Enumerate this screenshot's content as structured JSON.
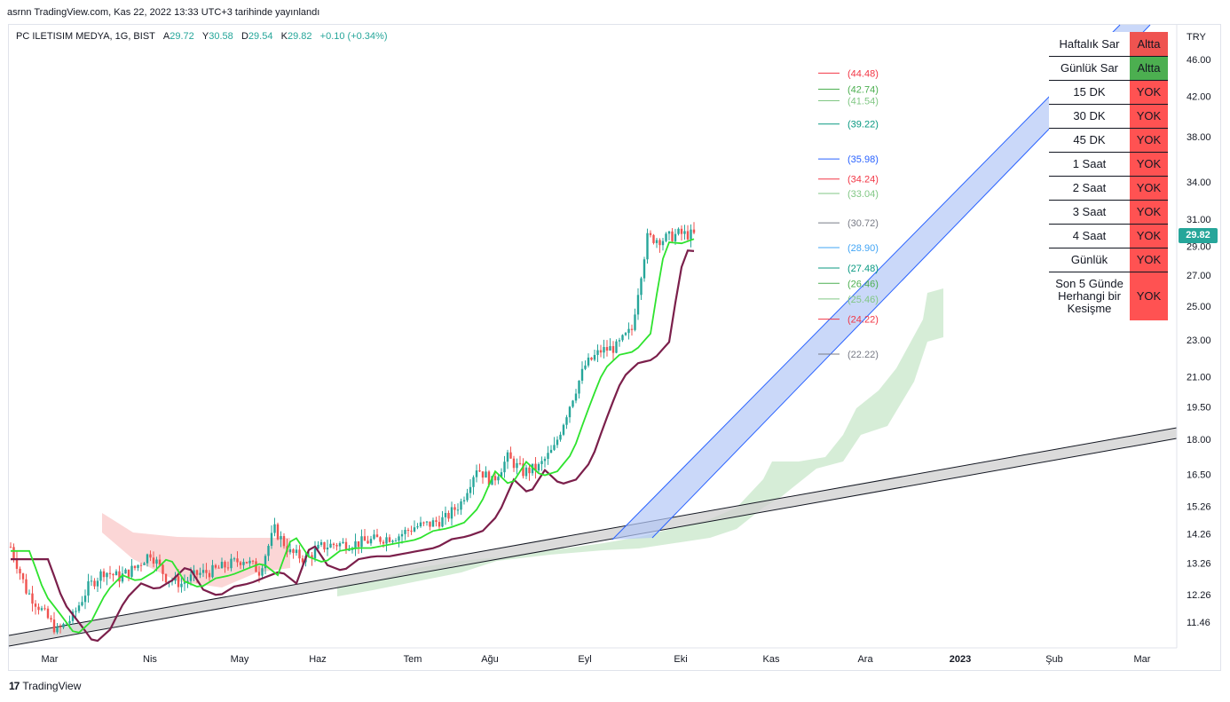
{
  "header": {
    "published": "asrnn TradingView.com, Kas 22, 2022 13:33 UTC+3 tarihinde yayınlandı"
  },
  "legend": {
    "symbol": "PC ILETISIM MEDYA, 1G, BIST",
    "open_label": "A",
    "open": "29.72",
    "high_label": "Y",
    "high": "30.58",
    "low_label": "D",
    "low": "29.54",
    "close_label": "K",
    "close": "29.82",
    "change": "+0.10 (+0.34%)"
  },
  "footer": {
    "brand": "TradingView",
    "mark": "17"
  },
  "status_table": {
    "rows": [
      {
        "label": "Haftalık Sar",
        "value": "Altta",
        "color": "#ef5350"
      },
      {
        "label": "Günlük Sar",
        "value": "Altta",
        "color": "#4caf50"
      },
      {
        "label": "15 DK",
        "value": "YOK",
        "color": "#ff5252"
      },
      {
        "label": "30 DK",
        "value": "YOK",
        "color": "#ff5252"
      },
      {
        "label": "45 DK",
        "value": "YOK",
        "color": "#ff5252"
      },
      {
        "label": "1 Saat",
        "value": "YOK",
        "color": "#ff5252"
      },
      {
        "label": "2 Saat",
        "value": "YOK",
        "color": "#ff5252"
      },
      {
        "label": "3 Saat",
        "value": "YOK",
        "color": "#ff5252"
      },
      {
        "label": "4 Saat",
        "value": "YOK",
        "color": "#ff5252"
      },
      {
        "label": "Günlük",
        "value": "YOK",
        "color": "#ff5252"
      },
      {
        "label": "Son 5 Günde Herhangi bir Kesişme",
        "value": "YOK",
        "color": "#ff5252"
      }
    ]
  },
  "chart_data": {
    "type": "candlestick",
    "currency": "TRY",
    "last_price": "29.82",
    "y_scale": "log",
    "ylim": [
      10.9,
      48.5
    ],
    "y_ticks": [
      "46.00",
      "42.00",
      "38.00",
      "34.00",
      "31.00",
      "29.00",
      "27.00",
      "25.00",
      "23.00",
      "21.00",
      "19.50",
      "18.00",
      "16.50",
      "15.26",
      "14.26",
      "13.26",
      "12.26",
      "11.46"
    ],
    "x_ticks": [
      "Mar",
      "Nis",
      "May",
      "Haz",
      "Tem",
      "Ağu",
      "Eyl",
      "Eki",
      "Kas",
      "Ara",
      "2023",
      "Şub",
      "Mar"
    ],
    "levels": [
      {
        "label": "(44.48)",
        "value": 44.48,
        "color": "#f23645"
      },
      {
        "label": "(42.74)",
        "value": 42.74,
        "color": "#4caf50"
      },
      {
        "label": "(41.54)",
        "value": 41.54,
        "color": "#81c784"
      },
      {
        "label": "(39.22)",
        "value": 39.22,
        "color": "#089981"
      },
      {
        "label": "(35.98)",
        "value": 35.98,
        "color": "#2962ff"
      },
      {
        "label": "(34.24)",
        "value": 34.24,
        "color": "#f23645"
      },
      {
        "label": "(33.04)",
        "value": 33.04,
        "color": "#81c784"
      },
      {
        "label": "(30.72)",
        "value": 30.72,
        "color": "#787b86"
      },
      {
        "label": "(28.90)",
        "value": 28.9,
        "color": "#42a5f5"
      },
      {
        "label": "(27.48)",
        "value": 27.48,
        "color": "#089981"
      },
      {
        "label": "(26.46)",
        "value": 26.46,
        "color": "#4caf50"
      },
      {
        "label": "(25.46)",
        "value": 25.46,
        "color": "#81c784"
      },
      {
        "label": "(24.22)",
        "value": 24.22,
        "color": "#f23645"
      },
      {
        "label": "(22.22)",
        "value": 22.22,
        "color": "#787b86"
      }
    ],
    "close_series": {
      "days": [
        0,
        5,
        10,
        15,
        20,
        25,
        30,
        35,
        40,
        45,
        50,
        55,
        60,
        65,
        70,
        75,
        80,
        85,
        90,
        95,
        100,
        105,
        110,
        115,
        120,
        125,
        130,
        135,
        140,
        145,
        150,
        155,
        160,
        165,
        170,
        175,
        180,
        185,
        190,
        195,
        200,
        205,
        210,
        215,
        220,
        225,
        230,
        235,
        240,
        245,
        250,
        255,
        260,
        265,
        266
      ],
      "values": [
        13.8,
        12.4,
        11.8,
        11.2,
        11.6,
        12.5,
        13.0,
        12.8,
        13.1,
        13.6,
        12.8,
        12.6,
        12.9,
        13.0,
        13.2,
        13.4,
        13.0,
        14.4,
        13.6,
        13.4,
        13.8,
        13.9,
        13.9,
        14.0,
        14.1,
        14.2,
        14.5,
        14.6,
        14.8,
        15.4,
        16.8,
        16.2,
        17.2,
        16.6,
        16.8,
        17.6,
        19.6,
        21.6,
        22.4,
        22.6,
        23.6,
        29.6,
        29.5,
        29.9,
        29.82,
        null,
        null,
        null,
        null,
        null,
        null,
        null,
        null,
        null,
        null
      ]
    }
  }
}
